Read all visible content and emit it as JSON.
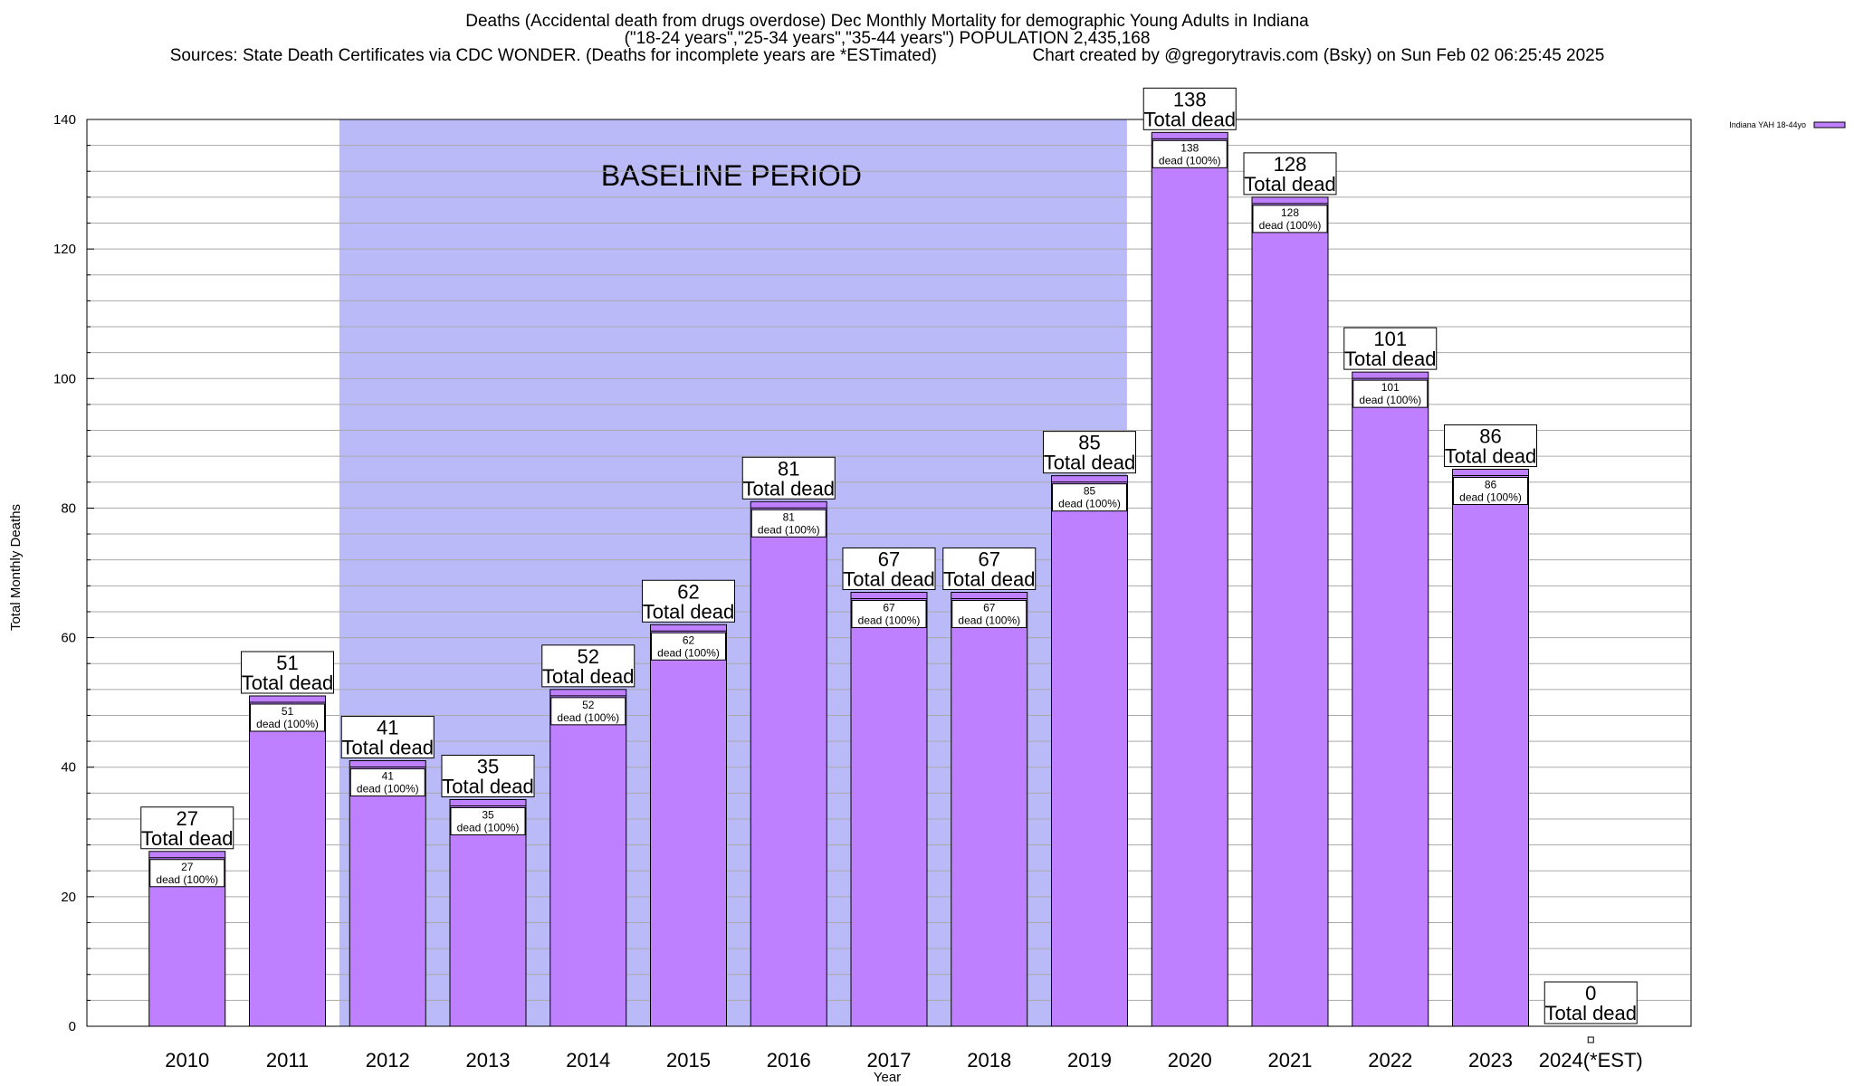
{
  "header": {
    "title_line1": "Deaths (Accidental death from drugs overdose) Dec Monthly Mortality for demographic Young Adults in Indiana",
    "title_line2": "(\"18-24 years\",\"25-34 years\",\"35-44 years\") POPULATION 2,435,168",
    "sources": "Sources: State Death Certificates via CDC WONDER. (Deaths for incomplete years are *ESTimated)",
    "credit": "Chart created by @gregorytravis.com (Bsky) on Sun Feb 02 06:25:45 2025"
  },
  "chart_data": {
    "type": "bar",
    "xlabel": "Year",
    "ylabel": "Total Monthly Deaths",
    "ylim": [
      0,
      140
    ],
    "y_ticks": [
      0,
      20,
      40,
      60,
      80,
      100,
      120,
      140
    ],
    "grid": true,
    "legend_position": "top-right",
    "categories": [
      "2010",
      "2011",
      "2012",
      "2013",
      "2014",
      "2015",
      "2016",
      "2017",
      "2018",
      "2019",
      "2020",
      "2021",
      "2022",
      "2023",
      "2024(*EST)"
    ],
    "series": [
      {
        "name": "Indiana YAH 18-44yo",
        "color": "#bf80ff",
        "values": [
          27,
          51,
          41,
          35,
          52,
          62,
          81,
          67,
          67,
          85,
          138,
          128,
          101,
          86,
          0
        ]
      }
    ],
    "bar_label_text": "Total dead",
    "inner_label_text": "dead (100%)",
    "baseline_region": {
      "label": "BASELINE PERIOD",
      "from_category": "2012",
      "to_category": "2019",
      "color": "#babaf9"
    }
  }
}
